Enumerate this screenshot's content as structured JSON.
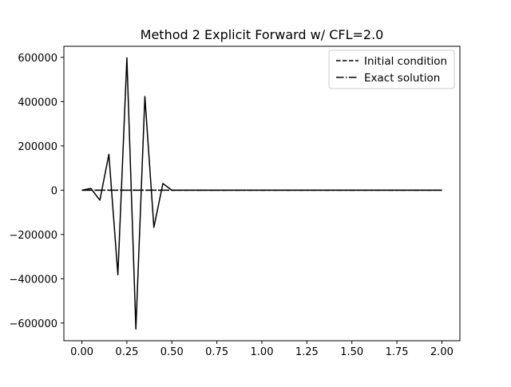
{
  "chart_data": {
    "type": "line",
    "title": "Method 2 Explicit Forward w/ CFL=2.0",
    "xlabel": "",
    "ylabel": "",
    "xlim": [
      -0.1,
      2.1
    ],
    "ylim": [
      -680000,
      650000
    ],
    "x_ticks": [
      0.0,
      0.25,
      0.5,
      0.75,
      1.0,
      1.25,
      1.5,
      1.75,
      2.0
    ],
    "x_tick_labels": [
      "0.00",
      "0.25",
      "0.50",
      "0.75",
      "1.00",
      "1.25",
      "1.50",
      "1.75",
      "2.00"
    ],
    "y_ticks": [
      -600000,
      -400000,
      -200000,
      0,
      200000,
      400000,
      600000
    ],
    "y_tick_labels": [
      "−600000",
      "−400000",
      "−200000",
      "0",
      "200000",
      "400000",
      "600000"
    ],
    "grid": false,
    "legend_position": "top-right",
    "series": [
      {
        "name": "Initial condition",
        "style": "dashed",
        "color": "#000000",
        "x": [
          0.0,
          0.05,
          0.1,
          0.15,
          0.2,
          0.25,
          0.3,
          0.35,
          0.4,
          0.45,
          0.5,
          0.55,
          0.6,
          0.65,
          0.7,
          0.75,
          0.8,
          0.85,
          0.9,
          0.95,
          1.0,
          1.05,
          1.1,
          1.15,
          1.2,
          1.25,
          1.3,
          1.35,
          1.4,
          1.45,
          1.5,
          1.55,
          1.6,
          1.65,
          1.7,
          1.75,
          1.8,
          1.85,
          1.9,
          1.95,
          2.0
        ],
        "y": [
          0,
          0,
          0,
          0,
          0,
          0,
          0,
          0,
          0,
          0,
          0,
          0,
          0,
          0,
          0,
          0,
          0,
          0,
          0,
          0,
          0,
          0,
          0,
          0,
          0,
          0,
          0,
          0,
          0,
          0,
          0,
          0,
          0,
          0,
          0,
          0,
          0,
          0,
          0,
          0,
          0
        ]
      },
      {
        "name": "Exact solution",
        "style": "dashdot",
        "color": "#000000",
        "x": [
          0.0,
          0.05,
          0.1,
          0.15,
          0.2,
          0.25,
          0.3,
          0.35,
          0.4,
          0.45,
          0.5,
          0.55,
          0.6,
          0.65,
          0.7,
          0.75,
          0.8,
          0.85,
          0.9,
          0.95,
          1.0,
          1.05,
          1.1,
          1.15,
          1.2,
          1.25,
          1.3,
          1.35,
          1.4,
          1.45,
          1.5,
          1.55,
          1.6,
          1.65,
          1.7,
          1.75,
          1.8,
          1.85,
          1.9,
          1.95,
          2.0
        ],
        "y": [
          0,
          0,
          0,
          0,
          0,
          0,
          0,
          0,
          0,
          0,
          0,
          0,
          0,
          0,
          0,
          0,
          0,
          0,
          0,
          0,
          0,
          0,
          0,
          0,
          0,
          0,
          0,
          0,
          0,
          0,
          0,
          0,
          0,
          0,
          0,
          0,
          0,
          0,
          0,
          0,
          0
        ]
      },
      {
        "style": "solid",
        "color": "#000000",
        "x": [
          0.0,
          0.05,
          0.1,
          0.15,
          0.2,
          0.25,
          0.3,
          0.35,
          0.4,
          0.45,
          0.5,
          0.55,
          0.6,
          0.65,
          0.7,
          0.75,
          0.8,
          0.85,
          0.9,
          0.95,
          1.0,
          1.05,
          1.1,
          1.15,
          1.2,
          1.25,
          1.3,
          1.35,
          1.4,
          1.45,
          1.5,
          1.55,
          1.6,
          1.65,
          1.7,
          1.75,
          1.8,
          1.85,
          1.9,
          1.95,
          2.0
        ],
        "y": [
          0,
          8000,
          -45000,
          162000,
          -382000,
          598000,
          -627000,
          423000,
          -168000,
          30000,
          0,
          0,
          0,
          0,
          0,
          0,
          0,
          0,
          0,
          0,
          0,
          0,
          0,
          0,
          0,
          0,
          0,
          0,
          0,
          0,
          0,
          0,
          0,
          0,
          0,
          0,
          0,
          0,
          0,
          0,
          0
        ]
      }
    ]
  }
}
